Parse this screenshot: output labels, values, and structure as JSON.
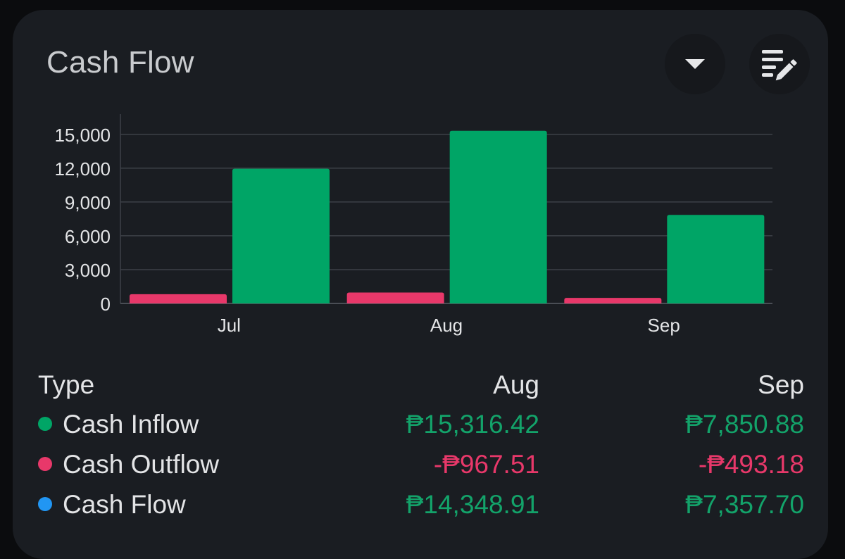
{
  "widget": {
    "title": "Cash Flow",
    "dropdown_icon": "caret-down-icon",
    "edit_icon": "list-edit-icon"
  },
  "colors": {
    "inflow": "#00a566",
    "outflow": "#e8386a",
    "flow": "#2196f3",
    "positive_text": "#13a36a",
    "negative_text": "#e8386a",
    "card_bg": "#1a1d22"
  },
  "chart_data": {
    "type": "bar",
    "categories": [
      "Jul",
      "Aug",
      "Sep"
    ],
    "series": [
      {
        "name": "Cash Outflow",
        "values": [
          820,
          967.51,
          493.18
        ]
      },
      {
        "name": "Cash Inflow",
        "values": [
          11950,
          15316.42,
          7850.88
        ]
      }
    ],
    "ylim": [
      0,
      16800
    ],
    "yticks": [
      0,
      3000,
      6000,
      9000,
      12000,
      15000
    ],
    "ytick_labels": [
      "0",
      "3,000",
      "6,000",
      "9,000",
      "12,000",
      "15,000"
    ],
    "grid": true
  },
  "table": {
    "header": {
      "type": "Type",
      "col1": "Aug",
      "col2": "Sep"
    },
    "rows": [
      {
        "label": "Cash Inflow",
        "color": "#00a566",
        "col1": "₱15,316.42",
        "col2": "₱7,850.88",
        "sign": "positive"
      },
      {
        "label": "Cash Outflow",
        "color": "#e8386a",
        "col1": "-₱967.51",
        "col2": "-₱493.18",
        "sign": "negative"
      },
      {
        "label": "Cash Flow",
        "color": "#2196f3",
        "col1": "₱14,348.91",
        "col2": "₱7,357.70",
        "sign": "positive"
      }
    ]
  }
}
